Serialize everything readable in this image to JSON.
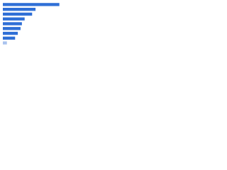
{
  "chart_data": {
    "type": "bar",
    "orientation": "horizontal",
    "categories": [
      null,
      null,
      null,
      null,
      null,
      null,
      null,
      null,
      null
    ],
    "values": [
      83,
      48,
      43,
      32,
      28,
      26,
      22,
      18,
      6
    ],
    "colors": [
      "#2f6fd6",
      "#2f6fd6",
      "#2f6fd6",
      "#2f6fd6",
      "#2f6fd6",
      "#2f6fd6",
      "#2f6fd6",
      "#2f6fd6",
      "#a9c3ee"
    ],
    "xlim": [
      0,
      100
    ],
    "grid": false
  }
}
